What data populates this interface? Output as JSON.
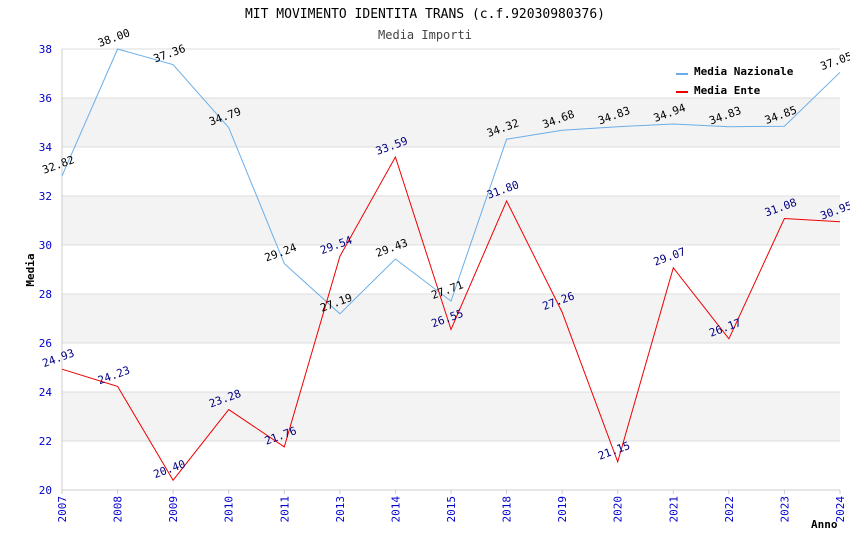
{
  "chart_data": {
    "type": "line",
    "title": "MIT MOVIMENTO IDENTITA TRANS (c.f.92030980376)",
    "subtitle": "Media Importi",
    "xlabel": "Anno",
    "ylabel": "Media",
    "categories": [
      "2007",
      "2008",
      "2009",
      "2010",
      "2011",
      "2013",
      "2014",
      "2015",
      "2018",
      "2019",
      "2020",
      "2021",
      "2022",
      "2023",
      "2024"
    ],
    "ylim": [
      20,
      38
    ],
    "yticks": [
      "20",
      "22",
      "24",
      "26",
      "28",
      "30",
      "32",
      "34",
      "36",
      "38"
    ],
    "grid": true,
    "legend_position": "top-right",
    "series": [
      {
        "name": "Media Nazionale",
        "color": "#6aaee8",
        "values": [
          32.82,
          38.0,
          37.36,
          34.79,
          29.24,
          27.19,
          29.43,
          27.71,
          34.32,
          34.68,
          34.83,
          34.94,
          34.83,
          34.85,
          37.05
        ],
        "labels": [
          "32.82",
          "38.00",
          "37.36",
          "34.79",
          "29.24",
          "27.19",
          "29.43",
          "27.71",
          "34.32",
          "34.68",
          "34.83",
          "34.94",
          "34.83",
          "34.85",
          "37.05"
        ]
      },
      {
        "name": "Media Ente",
        "color": "#ee0000",
        "values": [
          24.93,
          24.23,
          20.4,
          23.28,
          21.76,
          29.54,
          33.59,
          26.55,
          31.8,
          27.26,
          21.15,
          29.07,
          26.17,
          31.08,
          30.95
        ],
        "labels": [
          "24.93",
          "24.23",
          "20.40",
          "23.28",
          "21.76",
          "29.54",
          "33.59",
          "26.55",
          "31.80",
          "27.26",
          "21.15",
          "29.07",
          "26.17",
          "31.08",
          "30.95"
        ]
      }
    ]
  }
}
